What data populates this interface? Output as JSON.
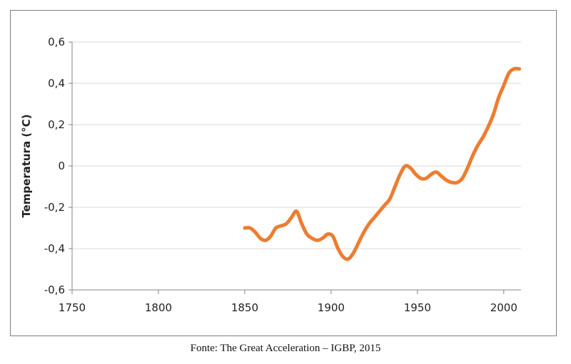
{
  "chart_data": {
    "type": "line",
    "title": "",
    "xlabel": "",
    "ylabel": "Temperatura (°C)",
    "xlim": [
      1750,
      2010
    ],
    "ylim": [
      -0.6,
      0.6
    ],
    "x_ticks": [
      1750,
      1800,
      1850,
      1900,
      1950,
      2000
    ],
    "y_ticks": [
      0.6,
      0.4,
      0.2,
      0,
      -0.2,
      -0.4,
      -0.6
    ],
    "y_tick_labels": [
      "0,6",
      "0,4",
      "0,2",
      "0",
      "-0,2",
      "-0,4",
      "-0,6"
    ],
    "grid": "horizontal",
    "line_color": "#ed7d31",
    "series": [
      {
        "x": [
          1850,
          1853,
          1856,
          1859,
          1862,
          1865,
          1868,
          1871,
          1874,
          1877,
          1880,
          1883,
          1886,
          1889,
          1892,
          1895,
          1898,
          1901,
          1904,
          1907,
          1910,
          1913,
          1916,
          1919,
          1922,
          1925,
          1928,
          1931,
          1934,
          1937,
          1940,
          1943,
          1946,
          1949,
          1952,
          1955,
          1958,
          1961,
          1964,
          1967,
          1970,
          1973,
          1976,
          1979,
          1982,
          1985,
          1988,
          1991,
          1994,
          1997,
          2000,
          2003,
          2006,
          2009
        ],
        "y": [
          -0.3,
          -0.3,
          -0.32,
          -0.35,
          -0.36,
          -0.34,
          -0.3,
          -0.29,
          -0.28,
          -0.25,
          -0.22,
          -0.28,
          -0.33,
          -0.35,
          -0.36,
          -0.35,
          -0.33,
          -0.34,
          -0.4,
          -0.44,
          -0.45,
          -0.42,
          -0.37,
          -0.32,
          -0.28,
          -0.25,
          -0.22,
          -0.19,
          -0.16,
          -0.1,
          -0.04,
          0,
          -0.01,
          -0.04,
          -0.06,
          -0.06,
          -0.04,
          -0.03,
          -0.05,
          -0.07,
          -0.08,
          -0.08,
          -0.06,
          -0.01,
          0.05,
          0.1,
          0.14,
          0.19,
          0.25,
          0.33,
          0.39,
          0.45,
          0.47,
          0.47
        ]
      }
    ]
  },
  "source": "Fonte: The Great Acceleration – IGBP, 2015"
}
